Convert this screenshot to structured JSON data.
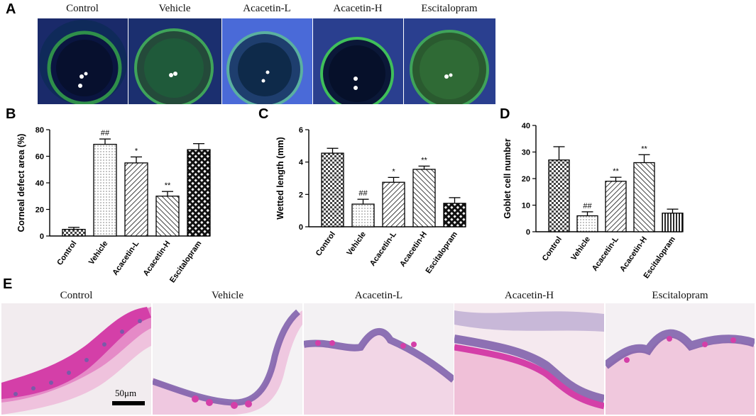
{
  "panels": {
    "A": "A",
    "B": "B",
    "C": "C",
    "D": "D",
    "E": "E"
  },
  "eye_images": {
    "labels": [
      "Control",
      "Vehicle",
      "Acacetin-L",
      "Acacetin-H",
      "Escitalopram"
    ]
  },
  "histo_images": {
    "labels": [
      "Control",
      "Vehicle",
      "Acacetin-L",
      "Acacetin-H",
      "Escitalopram"
    ],
    "scale_bar_label": "50μm"
  },
  "colors": {
    "eye_dark": "#0b1a3a",
    "eye_green": "#2f8f4a",
    "eye_blue": "#3a5fcf",
    "tissue_pink": "#e58ac7",
    "tissue_magenta": "#d43fa8",
    "tissue_purple": "#7a5aa8",
    "background": "#f2f0f2"
  },
  "chart_data": [
    {
      "type": "bar",
      "panel": "B",
      "categories": [
        "Control",
        "Vehicle",
        "Acacetin-L",
        "Acacetin-H",
        "Escitalopram"
      ],
      "values": [
        5,
        69,
        55,
        30,
        65
      ],
      "errors": [
        1.5,
        4,
        4.5,
        3.5,
        4.5
      ],
      "annotations": [
        "",
        "##",
        "*",
        "**",
        ""
      ],
      "patterns": [
        "checker",
        "dots",
        "hatch-right",
        "hatch-left",
        "crosshatch"
      ],
      "ylabel": "Corneal defect area (%)",
      "ylim": [
        0,
        80
      ],
      "yticks": [
        0,
        20,
        40,
        60,
        80
      ]
    },
    {
      "type": "bar",
      "panel": "C",
      "categories": [
        "Control",
        "Vehicle",
        "Acacetin-L",
        "Acacetin-H",
        "Escitalopram"
      ],
      "values": [
        4.55,
        1.4,
        2.75,
        3.55,
        1.45
      ],
      "errors": [
        0.3,
        0.3,
        0.3,
        0.2,
        0.35
      ],
      "annotations": [
        "",
        "##",
        "*",
        "**",
        ""
      ],
      "patterns": [
        "checker",
        "dots",
        "hatch-right",
        "hatch-left",
        "crosshatch"
      ],
      "ylabel": "Wetted length (mm)",
      "ylim": [
        0,
        6
      ],
      "yticks": [
        0,
        2,
        4,
        6
      ]
    },
    {
      "type": "bar",
      "panel": "D",
      "categories": [
        "Control",
        "Vehicle",
        "Acacetin-L",
        "Acacetin-H",
        "Escitalopram"
      ],
      "values": [
        27,
        6,
        19,
        26,
        7
      ],
      "errors": [
        5,
        1.5,
        1.5,
        3,
        1.5
      ],
      "annotations": [
        "",
        "##",
        "**",
        "**",
        ""
      ],
      "patterns": [
        "checker",
        "dots",
        "hatch-right",
        "hatch-left",
        "vlines"
      ],
      "ylabel": "Goblet cell number",
      "ylim": [
        0,
        40
      ],
      "yticks": [
        0,
        10,
        20,
        30,
        40
      ]
    }
  ]
}
